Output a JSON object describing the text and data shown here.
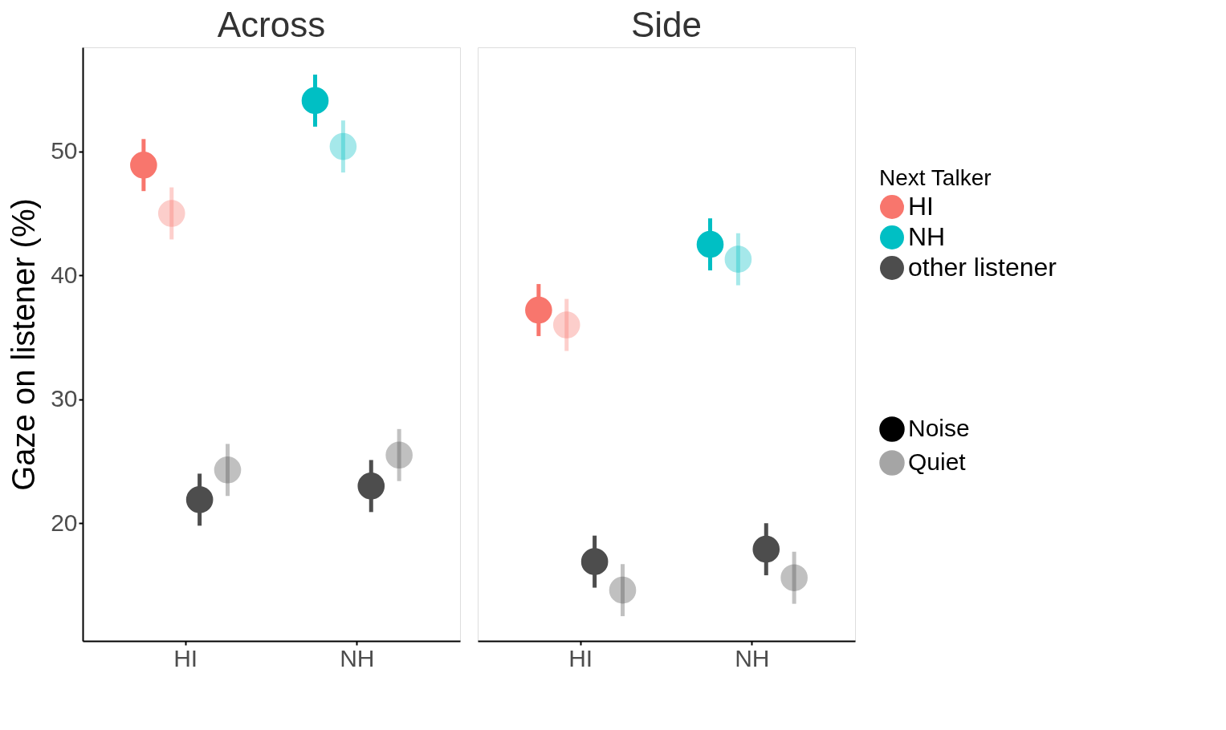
{
  "chart_data": [
    {
      "type": "scatter",
      "title": "Across",
      "ylabel": "Gaze on listener (%)",
      "grid": false,
      "marker": "circle",
      "categories": [
        "HI",
        "NH"
      ],
      "ylim": [
        10.5,
        58.4
      ],
      "yticks": [
        20,
        30,
        40,
        50
      ],
      "series": [
        {
          "color": "#f8766d",
          "values": [
            48.9,
            null
          ],
          "errors": [
            2.1,
            null
          ]
        },
        {
          "color": "#f8766d",
          "values": [
            45.0,
            null
          ],
          "errors": [
            2.1,
            null
          ]
        },
        {
          "color": "#00bfc4",
          "values": [
            null,
            54.1
          ],
          "errors": [
            null,
            2.1
          ]
        },
        {
          "color": "#00bfc4",
          "values": [
            null,
            50.4
          ],
          "errors": [
            null,
            2.1
          ]
        },
        {
          "color": "#4d4d4d",
          "values": [
            21.9,
            23.0
          ],
          "errors": [
            2.1,
            2.1
          ]
        },
        {
          "color": "#4d4d4d",
          "values": [
            24.3,
            25.5
          ],
          "errors": [
            2.1,
            2.1
          ]
        }
      ]
    },
    {
      "type": "scatter",
      "title": "Side",
      "legend_title": "Next Talker",
      "legend": "right",
      "grid": false,
      "marker": "circle",
      "tick_labels": "x",
      "annotations": [
        "Noise",
        "Quiet"
      ],
      "categories": [
        "HI",
        "NH"
      ],
      "ylim": [
        10.5,
        58.4
      ],
      "yticks": [
        20,
        30,
        40,
        50
      ],
      "series": [
        {
          "name": "HI",
          "color": "#f8766d",
          "values": [
            37.2,
            null
          ],
          "errors": [
            2.1,
            null
          ]
        },
        {
          "color": "#f8766d",
          "values": [
            36.0,
            null
          ],
          "errors": [
            2.1,
            null
          ]
        },
        {
          "name": "NH",
          "color": "#00bfc4",
          "values": [
            null,
            42.5
          ],
          "errors": [
            null,
            2.1
          ]
        },
        {
          "color": "#00bfc4",
          "values": [
            null,
            41.3
          ],
          "errors": [
            null,
            2.1
          ]
        },
        {
          "name": "other listener",
          "color": "#4d4d4d",
          "values": [
            16.9,
            17.9
          ],
          "errors": [
            2.1,
            2.1
          ]
        },
        {
          "color": "#4d4d4d",
          "values": [
            14.6,
            15.6
          ],
          "errors": [
            2.1,
            2.1
          ]
        }
      ]
    }
  ]
}
